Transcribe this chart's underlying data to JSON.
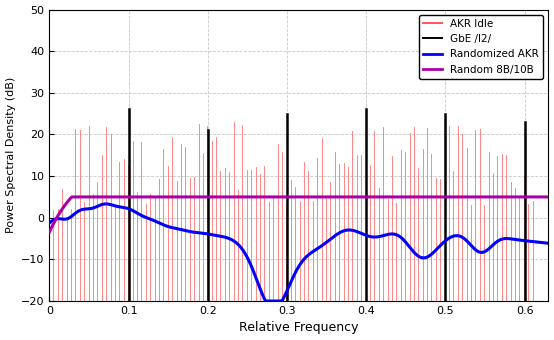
{
  "xlabel": "Relative Frequency",
  "ylabel": "Power Spectral Density (dB)",
  "xlim": [
    0,
    0.63
  ],
  "ylim": [
    -20,
    50
  ],
  "yticks": [
    -20,
    -10,
    0,
    10,
    20,
    30,
    40,
    50
  ],
  "xticks": [
    0.0,
    0.1,
    0.2,
    0.3,
    0.4,
    0.5,
    0.6
  ],
  "xtick_labels": [
    "0",
    "0.1",
    "0.2",
    "0.3",
    "0.4",
    "0.5",
    "0.6"
  ],
  "legend_labels": [
    "AKR Idle",
    "GbE /I2/",
    "Randomized AKR",
    "Random 8B/10B"
  ],
  "red_color": "#ff5555",
  "black_color": "#000000",
  "blue_color": "#0000ff",
  "purple_color": "#aa00aa",
  "bg_color": "#ffffff",
  "grid_color": "#bbbbbb",
  "black_spike_positions": [
    0.1,
    0.2,
    0.3,
    0.4,
    0.5,
    0.6
  ],
  "black_spike_heights": [
    26,
    21,
    25,
    26,
    25,
    23
  ],
  "red_seed": 12
}
